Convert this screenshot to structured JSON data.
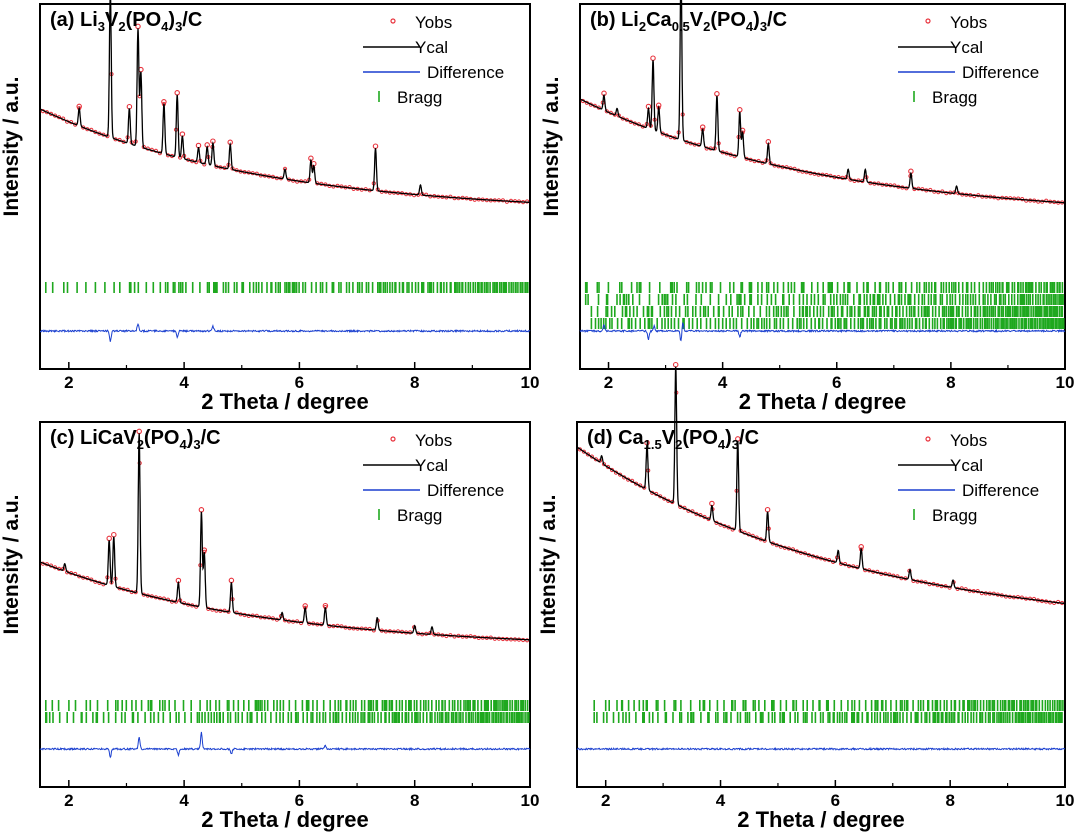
{
  "colors": {
    "yobs": "#e8323c",
    "ycal": "#000000",
    "difference": "#1a3fcf",
    "bragg": "#1fa81f",
    "frame": "#000000"
  },
  "chart_data": [
    {
      "type": "scatter",
      "panel": "(a)",
      "title": {
        "prefix": "(a) ",
        "parts": [
          [
            "Li",
            ""
          ],
          [
            "3",
            "sub"
          ],
          [
            "V",
            ""
          ],
          [
            "2",
            "sub"
          ],
          [
            "(PO",
            ""
          ],
          [
            "4",
            "sub"
          ],
          [
            ")",
            ""
          ],
          [
            "3",
            "sub"
          ],
          [
            "/C",
            ""
          ]
        ]
      },
      "xlabel": "2 Theta / degree",
      "ylabel": "Intensity / a.u.",
      "xlim": [
        1.5,
        10
      ],
      "xticks": [
        2,
        4,
        6,
        8,
        10
      ],
      "legend": {
        "position": "top-right",
        "entries": [
          "Yobs",
          "Ycal",
          "Difference",
          "Bragg"
        ]
      },
      "background": {
        "at_1_5": 0.66,
        "at_10": 0.24,
        "curv": 2.2
      },
      "peaks": [
        [
          2.18,
          0.07
        ],
        [
          2.72,
          0.58
        ],
        [
          3.05,
          0.14
        ],
        [
          3.2,
          0.47
        ],
        [
          3.25,
          0.3
        ],
        [
          3.65,
          0.2
        ],
        [
          3.88,
          0.25
        ],
        [
          3.97,
          0.09
        ],
        [
          4.25,
          0.06
        ],
        [
          4.4,
          0.07
        ],
        [
          4.5,
          0.09
        ],
        [
          4.8,
          0.1
        ],
        [
          5.75,
          0.04
        ],
        [
          6.2,
          0.09
        ],
        [
          6.25,
          0.07
        ],
        [
          7.32,
          0.17
        ],
        [
          8.1,
          0.04
        ]
      ],
      "bragg_rows": [
        {
          "start": 1.6,
          "density": 0.3
        }
      ],
      "diff_spikes": [
        [
          2.72,
          -0.9
        ],
        [
          3.2,
          0.6
        ],
        [
          3.88,
          -0.5
        ],
        [
          4.5,
          0.4
        ]
      ]
    },
    {
      "type": "scatter",
      "panel": "(b)",
      "title": {
        "prefix": "(b) ",
        "parts": [
          [
            "Li",
            ""
          ],
          [
            "2",
            "sub"
          ],
          [
            "Ca",
            ""
          ],
          [
            "0.5",
            "sub"
          ],
          [
            "V",
            ""
          ],
          [
            "2",
            "sub"
          ],
          [
            "(PO",
            ""
          ],
          [
            "4",
            "sub"
          ],
          [
            ")",
            ""
          ],
          [
            "3",
            "sub"
          ],
          [
            "/C",
            ""
          ]
        ]
      },
      "xlabel": "2 Theta / degree",
      "ylabel": "Intensity / a.u.",
      "xlim": [
        1.5,
        10
      ],
      "xticks": [
        2,
        4,
        6,
        8,
        10
      ],
      "legend": {
        "position": "top-right",
        "entries": [
          "Yobs",
          "Ycal",
          "Difference",
          "Bragg"
        ]
      },
      "background": {
        "at_1_5": 0.7,
        "at_10": 0.22,
        "curv": 2.0
      },
      "peaks": [
        [
          1.92,
          0.06
        ],
        [
          2.15,
          0.03
        ],
        [
          2.7,
          0.08
        ],
        [
          2.78,
          0.28
        ],
        [
          2.88,
          0.1
        ],
        [
          3.27,
          0.66
        ],
        [
          3.65,
          0.07
        ],
        [
          3.9,
          0.22
        ],
        [
          4.3,
          0.18
        ],
        [
          4.35,
          0.1
        ],
        [
          4.8,
          0.08
        ],
        [
          6.2,
          0.04
        ],
        [
          6.5,
          0.05
        ],
        [
          7.3,
          0.06
        ],
        [
          8.1,
          0.03
        ]
      ],
      "bragg_rows": [
        {
          "start": 1.6,
          "density": 0.15
        },
        {
          "start": 1.6,
          "density": 0.3
        },
        {
          "start": 1.7,
          "density": 0.45
        },
        {
          "start": 1.7,
          "density": 0.55
        }
      ],
      "diff_spikes": [
        [
          1.92,
          0.5
        ],
        [
          2.7,
          -0.7
        ],
        [
          2.8,
          0.4
        ],
        [
          3.27,
          -0.9
        ],
        [
          3.3,
          0.8
        ],
        [
          4.3,
          -0.5
        ]
      ]
    },
    {
      "type": "scatter",
      "panel": "(c)",
      "title": {
        "prefix": "(c) ",
        "parts": [
          [
            "LiCaV",
            ""
          ],
          [
            "2",
            "sub"
          ],
          [
            "(PO",
            ""
          ],
          [
            "4",
            "sub"
          ],
          [
            ")",
            ""
          ],
          [
            "3",
            "sub"
          ],
          [
            "/C",
            ""
          ]
        ]
      },
      "xlabel": "2 Theta / degree",
      "ylabel": "Intensity / a.u.",
      "xlim": [
        1.5,
        10
      ],
      "xticks": [
        2,
        4,
        6,
        8,
        10
      ],
      "legend": {
        "position": "top-right",
        "entries": [
          "Yobs",
          "Ycal",
          "Difference",
          "Bragg"
        ]
      },
      "background": {
        "at_1_5": 0.52,
        "at_10": 0.17,
        "curv": 2.2
      },
      "peaks": [
        [
          1.93,
          0.03
        ],
        [
          2.7,
          0.18
        ],
        [
          2.78,
          0.2
        ],
        [
          3.22,
          0.64
        ],
        [
          3.9,
          0.08
        ],
        [
          4.3,
          0.38
        ],
        [
          4.35,
          0.22
        ],
        [
          4.82,
          0.12
        ],
        [
          5.7,
          0.03
        ],
        [
          6.1,
          0.06
        ],
        [
          6.45,
          0.07
        ],
        [
          7.35,
          0.05
        ],
        [
          8.0,
          0.03
        ],
        [
          8.3,
          0.03
        ]
      ],
      "bragg_rows": [
        {
          "start": 1.6,
          "density": 0.25
        },
        {
          "start": 1.6,
          "density": 0.45
        }
      ],
      "diff_spikes": [
        [
          2.72,
          -0.7
        ],
        [
          3.22,
          1.0
        ],
        [
          3.9,
          -0.5
        ],
        [
          4.3,
          1.4
        ],
        [
          4.82,
          -0.4
        ],
        [
          6.45,
          0.3
        ]
      ]
    },
    {
      "type": "scatter",
      "panel": "(d)",
      "title": {
        "prefix": "(d) ",
        "parts": [
          [
            "Ca",
            ""
          ],
          [
            "1.5",
            "sub"
          ],
          [
            "V",
            ""
          ],
          [
            "2",
            "sub"
          ],
          [
            "(PO",
            ""
          ],
          [
            "4",
            "sub"
          ],
          [
            ")",
            ""
          ],
          [
            "3",
            "sub"
          ],
          [
            "/C",
            ""
          ]
        ]
      },
      "xlabel": "2 Theta / degree",
      "ylabel": "Intensity / a.u.",
      "xlim": [
        1.5,
        10
      ],
      "xticks": [
        2,
        4,
        6,
        8,
        10
      ],
      "legend": {
        "position": "top-right",
        "entries": [
          "Yobs",
          "Ycal",
          "Difference",
          "Bragg"
        ]
      },
      "background": {
        "at_1_5": 0.98,
        "at_10": 0.23,
        "curv": 1.8
      },
      "peaks": [
        [
          1.93,
          0.03
        ],
        [
          2.72,
          0.18
        ],
        [
          3.22,
          0.55
        ],
        [
          3.85,
          0.06
        ],
        [
          4.3,
          0.36
        ],
        [
          4.82,
          0.12
        ],
        [
          6.05,
          0.05
        ],
        [
          6.45,
          0.08
        ],
        [
          7.3,
          0.04
        ],
        [
          8.05,
          0.03
        ]
      ],
      "bragg_rows": [
        {
          "start": 1.8,
          "density": 0.25
        },
        {
          "start": 1.8,
          "density": 0.45
        }
      ],
      "diff_spikes": []
    }
  ]
}
